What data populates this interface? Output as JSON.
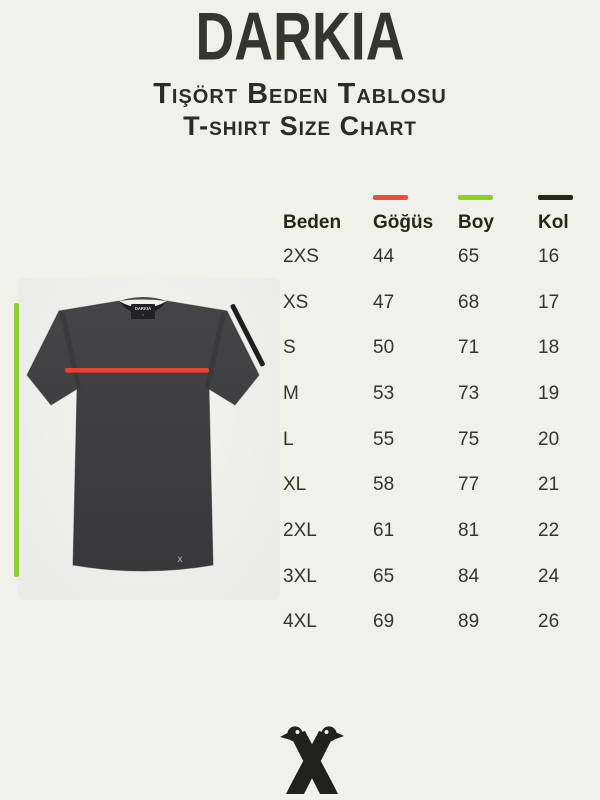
{
  "header": {
    "brand": "DARKIA",
    "subtitle_tr": "Tişört Beden Tablosu",
    "subtitle_en": "T-shirt Size Chart"
  },
  "shirt": {
    "neck_label": "DARKIA",
    "hem_mark": "x"
  },
  "size_chart": {
    "columns": [
      {
        "label": "Beden",
        "swatch": ""
      },
      {
        "label": "Göğüs",
        "swatch": "#ea4f3f"
      },
      {
        "label": "Boy",
        "swatch": "#8bd11e"
      },
      {
        "label": "Kol",
        "swatch": "#26261f"
      }
    ],
    "rows": [
      [
        "2XS",
        "44",
        "65",
        "16"
      ],
      [
        "XS",
        "47",
        "68",
        "17"
      ],
      [
        "S",
        "50",
        "71",
        "18"
      ],
      [
        "M",
        "53",
        "73",
        "19"
      ],
      [
        "L",
        "55",
        "75",
        "20"
      ],
      [
        "XL",
        "58",
        "77",
        "21"
      ],
      [
        "2XL",
        "61",
        "81",
        "22"
      ],
      [
        "3XL",
        "65",
        "84",
        "24"
      ],
      [
        "4XL",
        "69",
        "89",
        "26"
      ]
    ]
  },
  "chart_data": {
    "type": "table",
    "title": "Tişört Beden Tablosu / T-shirt Size Chart",
    "columns": [
      "Beden",
      "Göğüs",
      "Boy",
      "Kol"
    ],
    "rows": [
      [
        "2XS",
        44,
        65,
        16
      ],
      [
        "XS",
        47,
        68,
        17
      ],
      [
        "S",
        50,
        71,
        18
      ],
      [
        "M",
        53,
        73,
        19
      ],
      [
        "L",
        55,
        75,
        20
      ],
      [
        "XL",
        58,
        77,
        21
      ],
      [
        "2XL",
        61,
        81,
        22
      ],
      [
        "3XL",
        65,
        84,
        24
      ],
      [
        "4XL",
        69,
        89,
        26
      ]
    ],
    "legend": [
      {
        "label": "Göğüs",
        "color": "#ea4f3f",
        "maps_to": "horizontal chest line on shirt"
      },
      {
        "label": "Boy",
        "color": "#8bd11e",
        "maps_to": "vertical height line left of shirt"
      },
      {
        "label": "Kol",
        "color": "#26261f",
        "maps_to": "diagonal sleeve line on shirt"
      }
    ]
  },
  "colors": {
    "background": "#f0f1ea",
    "text": "#2f2f2c",
    "shirt": "#3e3e40",
    "chest_line": "#f13f2c",
    "height_line": "#8bd11e",
    "sleeve_line": "#1e1e1c"
  }
}
